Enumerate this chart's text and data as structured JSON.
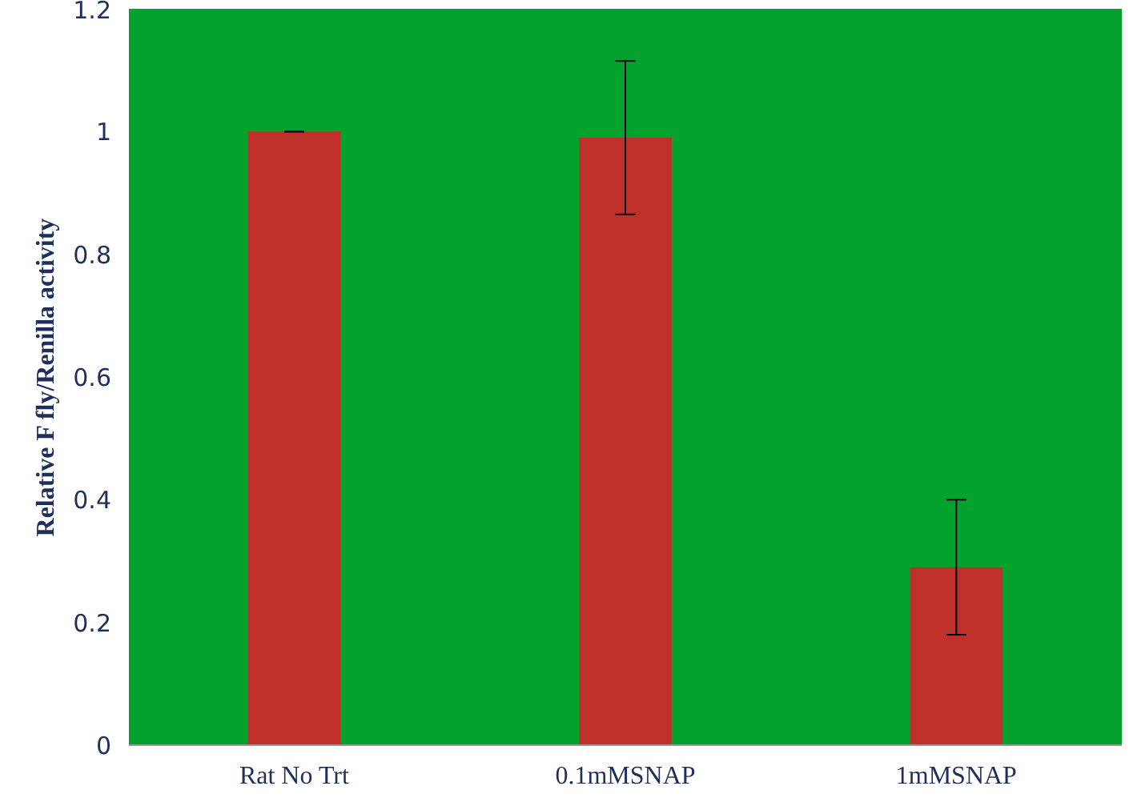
{
  "chart_data": {
    "type": "bar",
    "ylabel": "Relative F fly/Renilla activity",
    "categories": [
      "Rat No Trt",
      "0.1mMSNAP",
      "1mMSNAP"
    ],
    "values": [
      1.0,
      0.99,
      0.29
    ],
    "errors": [
      0,
      0.125,
      [
        0.18,
        0.4
      ]
    ],
    "color": "#c0302b",
    "ylim": [
      0,
      1.2
    ],
    "yticks": [
      0,
      0.2,
      0.4,
      0.6,
      0.8,
      1,
      1.2
    ],
    "grid": false
  }
}
